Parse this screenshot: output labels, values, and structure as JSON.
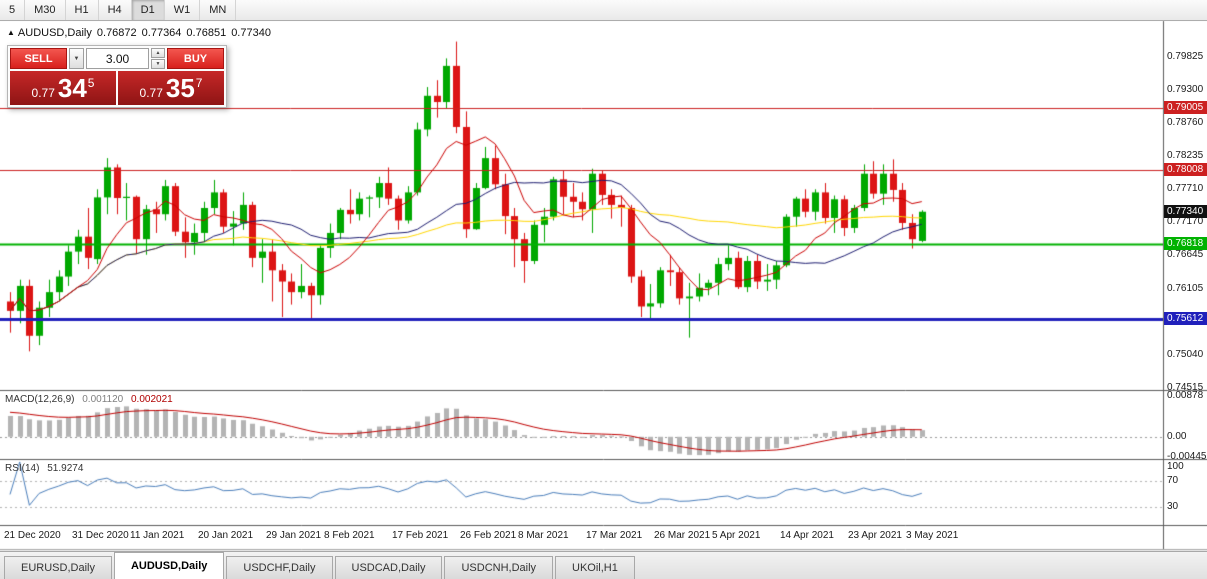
{
  "toolbar": {
    "timeframes": [
      {
        "label": "5",
        "active": false
      },
      {
        "label": "M30",
        "active": false
      },
      {
        "label": "H1",
        "active": false
      },
      {
        "label": "H4",
        "active": false
      },
      {
        "label": "D1",
        "active": true
      },
      {
        "label": "W1",
        "active": false
      },
      {
        "label": "MN",
        "active": false
      }
    ]
  },
  "chart_header": {
    "expand_icon": "▲",
    "symbol": "AUDUSD,Daily",
    "open": "0.76872",
    "high": "0.77364",
    "low": "0.76851",
    "close": "0.77340"
  },
  "trade_panel": {
    "sell_label": "SELL",
    "buy_label": "BUY",
    "lot_value": "3.00",
    "dropdown_icon": "▼",
    "spin_up_icon": "▲",
    "spin_down_icon": "▼",
    "sell_price": {
      "prefix": "0.77",
      "big": "34",
      "sup": "5"
    },
    "buy_price": {
      "prefix": "0.77",
      "big": "35",
      "sup": "7"
    }
  },
  "indicators": {
    "macd": {
      "name": "MACD(12,26,9)",
      "value_main": "0.001120",
      "value_signal": "0.002021"
    },
    "rsi": {
      "name": "RSI(14)",
      "value": "51.9274"
    }
  },
  "tabs": [
    {
      "label": "EURUSD,Daily",
      "active": false
    },
    {
      "label": "AUDUSD,Daily",
      "active": true
    },
    {
      "label": "USDCHF,Daily",
      "active": false
    },
    {
      "label": "USDCAD,Daily",
      "active": false
    },
    {
      "label": "USDCNH,Daily",
      "active": false
    },
    {
      "label": "UKOil,H1",
      "active": false
    }
  ],
  "chart_data": {
    "type": "candlestick",
    "title": "AUDUSD,Daily",
    "symbol": "AUDUSD",
    "timeframe": "Daily",
    "price_axis": {
      "min": 0.7448,
      "max": 0.804,
      "tick_labels": [
        0.79825,
        0.793,
        0.7876,
        0.78235,
        0.7771,
        0.7717,
        0.76645,
        0.76105,
        0.7558,
        0.7504,
        0.74515
      ]
    },
    "hlines": [
      {
        "name": "resistance-1",
        "value": 0.79005,
        "color": "#cc2020",
        "width": 1,
        "line": true
      },
      {
        "name": "resistance-2",
        "value": 0.78008,
        "color": "#cc2020",
        "width": 1,
        "line": true
      },
      {
        "name": "current-price",
        "value": 0.7734,
        "color": "#111111",
        "width": 1,
        "line": false
      },
      {
        "name": "support-1",
        "value": 0.76818,
        "color": "#00b200",
        "width": 2,
        "line": true
      },
      {
        "name": "support-2",
        "value": 0.75612,
        "color": "#2020bb",
        "width": 3,
        "line": true
      }
    ],
    "colors": {
      "up": "#00a800",
      "down": "#dc1414",
      "ma_fast": "#cc0000",
      "ma_mid": "#1c1c70",
      "ma_slow": "#ffd700",
      "macd_hist": "#b4b4b4",
      "macd_signal": "#c00000",
      "rsi_line": "#4a7ebb"
    },
    "moving_averages": [
      {
        "period": 55,
        "color": "#ffd700",
        "width": 1
      },
      {
        "period": 21,
        "color": "#1c1c70",
        "width": 1
      },
      {
        "period": 8,
        "color": "#cc0000",
        "width": 1
      }
    ],
    "macd": {
      "params": "12,26,9",
      "scale_max": 0.0099,
      "scale_min": -0.0048,
      "axis_labels": [
        {
          "text": "0.00878",
          "value": 0.00878
        },
        {
          "text": "0.00",
          "value": 0
        },
        {
          "text": "-0.00445",
          "value": -0.00445
        }
      ]
    },
    "rsi": {
      "period": 14,
      "scale_max": 103,
      "scale_min": 3,
      "levels": [
        70,
        30
      ],
      "axis_labels": [
        {
          "text": "100",
          "value": 100
        },
        {
          "text": "70",
          "value": 70
        },
        {
          "text": "30",
          "value": 30
        }
      ]
    },
    "x_axis": {
      "labels": [
        {
          "text": "21 Dec 2020",
          "index": 0
        },
        {
          "text": "31 Dec 2020",
          "index": 7
        },
        {
          "text": "11 Jan 2021",
          "index": 13
        },
        {
          "text": "20 Jan 2021",
          "index": 20
        },
        {
          "text": "29 Jan 2021",
          "index": 27
        },
        {
          "text": "8 Feb 2021",
          "index": 33
        },
        {
          "text": "17 Feb 2021",
          "index": 40
        },
        {
          "text": "26 Feb 2021",
          "index": 47
        },
        {
          "text": "8 Mar 2021",
          "index": 53
        },
        {
          "text": "17 Mar 2021",
          "index": 60
        },
        {
          "text": "26 Mar 2021",
          "index": 67
        },
        {
          "text": "5 Apr 2021",
          "index": 73
        },
        {
          "text": "14 Apr 2021",
          "index": 80
        },
        {
          "text": "23 Apr 2021",
          "index": 87
        },
        {
          "text": "3 May 2021",
          "index": 93
        }
      ]
    },
    "candles": [
      [
        0.759,
        0.7605,
        0.754,
        0.7575
      ],
      [
        0.7575,
        0.7625,
        0.7555,
        0.7615
      ],
      [
        0.7615,
        0.7625,
        0.751,
        0.7535
      ],
      [
        0.7535,
        0.759,
        0.752,
        0.758
      ],
      [
        0.758,
        0.7625,
        0.7565,
        0.7605
      ],
      [
        0.7605,
        0.764,
        0.759,
        0.763
      ],
      [
        0.763,
        0.768,
        0.7615,
        0.767
      ],
      [
        0.767,
        0.7705,
        0.765,
        0.7694
      ],
      [
        0.7694,
        0.774,
        0.7642,
        0.766
      ],
      [
        0.7658,
        0.777,
        0.765,
        0.7757
      ],
      [
        0.7757,
        0.782,
        0.773,
        0.7805
      ],
      [
        0.7805,
        0.781,
        0.773,
        0.7756
      ],
      [
        0.7756,
        0.778,
        0.772,
        0.7758
      ],
      [
        0.7758,
        0.776,
        0.7666,
        0.769
      ],
      [
        0.769,
        0.7745,
        0.7665,
        0.7738
      ],
      [
        0.7738,
        0.775,
        0.77,
        0.773
      ],
      [
        0.773,
        0.7785,
        0.772,
        0.7775
      ],
      [
        0.7775,
        0.778,
        0.7695,
        0.7702
      ],
      [
        0.7702,
        0.7725,
        0.766,
        0.7685
      ],
      [
        0.7685,
        0.7715,
        0.7665,
        0.77
      ],
      [
        0.77,
        0.775,
        0.7685,
        0.774
      ],
      [
        0.774,
        0.7785,
        0.773,
        0.7765
      ],
      [
        0.7765,
        0.777,
        0.77,
        0.771
      ],
      [
        0.771,
        0.7735,
        0.768,
        0.7715
      ],
      [
        0.7715,
        0.7765,
        0.7705,
        0.7745
      ],
      [
        0.7745,
        0.775,
        0.7645,
        0.766
      ],
      [
        0.766,
        0.769,
        0.762,
        0.767
      ],
      [
        0.767,
        0.769,
        0.759,
        0.764
      ],
      [
        0.764,
        0.765,
        0.7565,
        0.7622
      ],
      [
        0.7622,
        0.7635,
        0.7585,
        0.7605
      ],
      [
        0.7605,
        0.765,
        0.7595,
        0.7615
      ],
      [
        0.7615,
        0.762,
        0.756,
        0.76
      ],
      [
        0.76,
        0.768,
        0.7585,
        0.7676
      ],
      [
        0.7676,
        0.7715,
        0.766,
        0.77
      ],
      [
        0.77,
        0.774,
        0.769,
        0.7737
      ],
      [
        0.7737,
        0.777,
        0.7715,
        0.773
      ],
      [
        0.773,
        0.7765,
        0.772,
        0.7755
      ],
      [
        0.7755,
        0.776,
        0.7725,
        0.7757
      ],
      [
        0.7757,
        0.779,
        0.774,
        0.778
      ],
      [
        0.778,
        0.7805,
        0.7745,
        0.7755
      ],
      [
        0.7755,
        0.776,
        0.7705,
        0.772
      ],
      [
        0.772,
        0.7775,
        0.7715,
        0.7765
      ],
      [
        0.7765,
        0.7877,
        0.776,
        0.7866
      ],
      [
        0.7866,
        0.7934,
        0.7855,
        0.792
      ],
      [
        0.792,
        0.7945,
        0.7885,
        0.791
      ],
      [
        0.791,
        0.798,
        0.79,
        0.7968
      ],
      [
        0.7968,
        0.8007,
        0.786,
        0.787
      ],
      [
        0.787,
        0.7895,
        0.7692,
        0.7706
      ],
      [
        0.7706,
        0.778,
        0.7705,
        0.7772
      ],
      [
        0.7772,
        0.7838,
        0.777,
        0.782
      ],
      [
        0.782,
        0.784,
        0.777,
        0.7778
      ],
      [
        0.7778,
        0.7795,
        0.7698,
        0.7727
      ],
      [
        0.7727,
        0.774,
        0.7645,
        0.769
      ],
      [
        0.769,
        0.77,
        0.762,
        0.7655
      ],
      [
        0.7655,
        0.772,
        0.765,
        0.7713
      ],
      [
        0.7713,
        0.774,
        0.7685,
        0.7726
      ],
      [
        0.7726,
        0.779,
        0.772,
        0.7786
      ],
      [
        0.7786,
        0.78,
        0.773,
        0.7758
      ],
      [
        0.7758,
        0.778,
        0.7725,
        0.775
      ],
      [
        0.775,
        0.7765,
        0.772,
        0.7738
      ],
      [
        0.7738,
        0.7803,
        0.77,
        0.7795
      ],
      [
        0.7795,
        0.78,
        0.7745,
        0.7761
      ],
      [
        0.7761,
        0.777,
        0.7723,
        0.7745
      ],
      [
        0.7745,
        0.776,
        0.771,
        0.774
      ],
      [
        0.774,
        0.7745,
        0.762,
        0.763
      ],
      [
        0.763,
        0.764,
        0.7565,
        0.7582
      ],
      [
        0.7582,
        0.7618,
        0.7562,
        0.7587
      ],
      [
        0.7587,
        0.7645,
        0.758,
        0.764
      ],
      [
        0.764,
        0.7665,
        0.7615,
        0.7637
      ],
      [
        0.7637,
        0.7645,
        0.7585,
        0.7595
      ],
      [
        0.7595,
        0.762,
        0.7532,
        0.7598
      ],
      [
        0.7598,
        0.7635,
        0.759,
        0.7612
      ],
      [
        0.7612,
        0.7625,
        0.76,
        0.762
      ],
      [
        0.762,
        0.766,
        0.76,
        0.765
      ],
      [
        0.765,
        0.768,
        0.764,
        0.766
      ],
      [
        0.766,
        0.767,
        0.761,
        0.7613
      ],
      [
        0.7613,
        0.7663,
        0.7605,
        0.7655
      ],
      [
        0.7655,
        0.7665,
        0.761,
        0.7622
      ],
      [
        0.7622,
        0.765,
        0.7607,
        0.7625
      ],
      [
        0.7625,
        0.7655,
        0.761,
        0.7648
      ],
      [
        0.7648,
        0.773,
        0.7645,
        0.7726
      ],
      [
        0.7726,
        0.7758,
        0.771,
        0.7755
      ],
      [
        0.7755,
        0.777,
        0.7725,
        0.7734
      ],
      [
        0.7734,
        0.777,
        0.772,
        0.7765
      ],
      [
        0.7765,
        0.778,
        0.7715,
        0.7724
      ],
      [
        0.7724,
        0.776,
        0.77,
        0.7754
      ],
      [
        0.7754,
        0.776,
        0.7695,
        0.7708
      ],
      [
        0.7708,
        0.7745,
        0.77,
        0.774
      ],
      [
        0.774,
        0.781,
        0.7735,
        0.7795
      ],
      [
        0.7795,
        0.7815,
        0.7755,
        0.7763
      ],
      [
        0.7763,
        0.781,
        0.7745,
        0.7795
      ],
      [
        0.7795,
        0.7818,
        0.775,
        0.7769
      ],
      [
        0.7769,
        0.778,
        0.7705,
        0.7716
      ],
      [
        0.7716,
        0.773,
        0.7675,
        0.769
      ],
      [
        0.76872,
        0.77364,
        0.76851,
        0.7734
      ]
    ]
  }
}
